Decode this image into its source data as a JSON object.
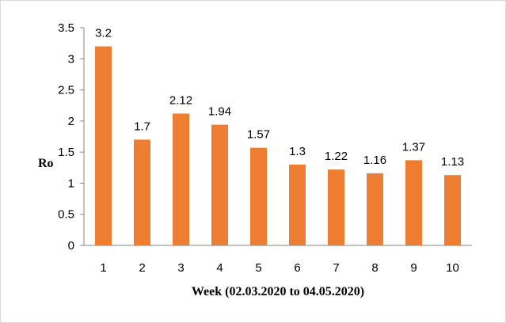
{
  "chart_data": {
    "type": "bar",
    "categories": [
      "1",
      "2",
      "3",
      "4",
      "5",
      "6",
      "7",
      "8",
      "9",
      "10"
    ],
    "values": [
      3.2,
      1.7,
      2.12,
      1.94,
      1.57,
      1.3,
      1.22,
      1.16,
      1.37,
      1.13
    ],
    "data_labels": [
      "3.2",
      "1.7",
      "2.12",
      "1.94",
      "1.57",
      "1.3",
      "1.22",
      "1.16",
      "1.37",
      "1.13"
    ],
    "y_ticks": [
      "0",
      "0.5",
      "1",
      "1.5",
      "2",
      "2.5",
      "3",
      "3.5"
    ],
    "xlabel": "Week (02.03.2020 to 04.05.2020)",
    "ylabel": "Ro",
    "ylim": [
      0,
      3.5
    ],
    "grid": false,
    "legend": false,
    "bar_color": "#ED7D31"
  }
}
